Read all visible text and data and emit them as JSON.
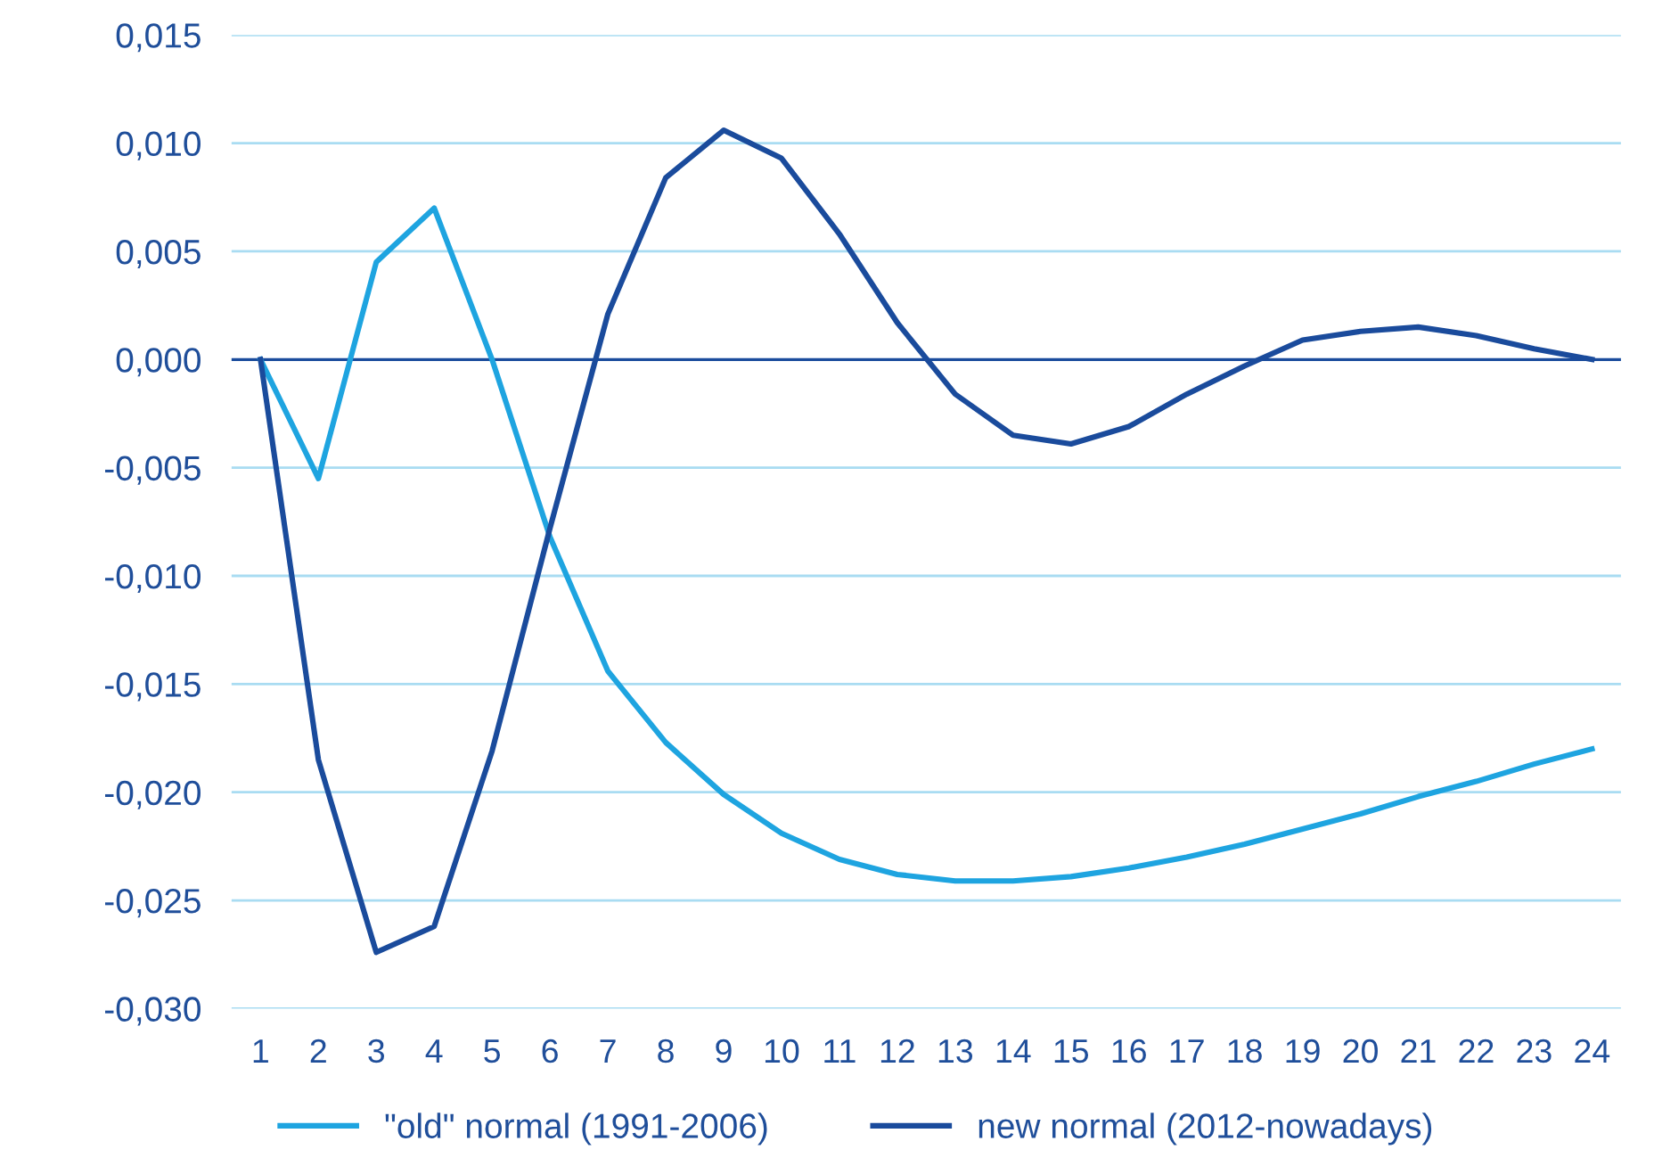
{
  "chart_data": {
    "type": "line",
    "categories": [
      "1",
      "2",
      "3",
      "4",
      "5",
      "6",
      "7",
      "8",
      "9",
      "10",
      "11",
      "12",
      "13",
      "14",
      "15",
      "16",
      "17",
      "18",
      "19",
      "20",
      "21",
      "22",
      "23",
      "24"
    ],
    "series": [
      {
        "name": "\"old\" normal (1991-2006)",
        "color": "#1ea4e0",
        "values": [
          0,
          -0.0055,
          0.0045,
          0.007,
          0.0,
          -0.0082,
          -0.0144,
          -0.0177,
          -0.0201,
          -0.0219,
          -0.0231,
          -0.0238,
          -0.0241,
          -0.0241,
          -0.0239,
          -0.0235,
          -0.023,
          -0.0224,
          -0.0217,
          -0.021,
          -0.0202,
          -0.0195,
          -0.0187,
          -0.018
        ]
      },
      {
        "name": "new normal (2012-nowadays)",
        "color": "#1a4b9c",
        "values": [
          0,
          -0.0185,
          -0.0274,
          -0.0262,
          -0.0181,
          -0.0078,
          0.0021,
          0.0084,
          0.0106,
          0.0093,
          0.0058,
          0.0017,
          -0.0016,
          -0.0035,
          -0.0039,
          -0.0031,
          -0.0016,
          -0.0003,
          0.0009,
          0.0013,
          0.0015,
          0.0011,
          0.0005,
          0.0
        ]
      }
    ],
    "ylim": [
      -0.03,
      0.015
    ],
    "yticks": [
      {
        "value": -0.03,
        "label": "-0,030"
      },
      {
        "value": -0.025,
        "label": "-0,025"
      },
      {
        "value": -0.02,
        "label": "-0,020"
      },
      {
        "value": -0.015,
        "label": "-0,015"
      },
      {
        "value": -0.01,
        "label": "-0,010"
      },
      {
        "value": -0.005,
        "label": "-0,005"
      },
      {
        "value": 0,
        "label": "0,000"
      },
      {
        "value": 0.005,
        "label": "0,005"
      },
      {
        "value": 0.01,
        "label": "0,010"
      },
      {
        "value": 0.015,
        "label": "0,015"
      }
    ],
    "ref_lines": [
      {
        "axis": "y",
        "value": 0,
        "color": "#1a4b9c"
      }
    ],
    "grid": "y",
    "legend": "bottom",
    "marker": "none",
    "line_style": "solid"
  }
}
